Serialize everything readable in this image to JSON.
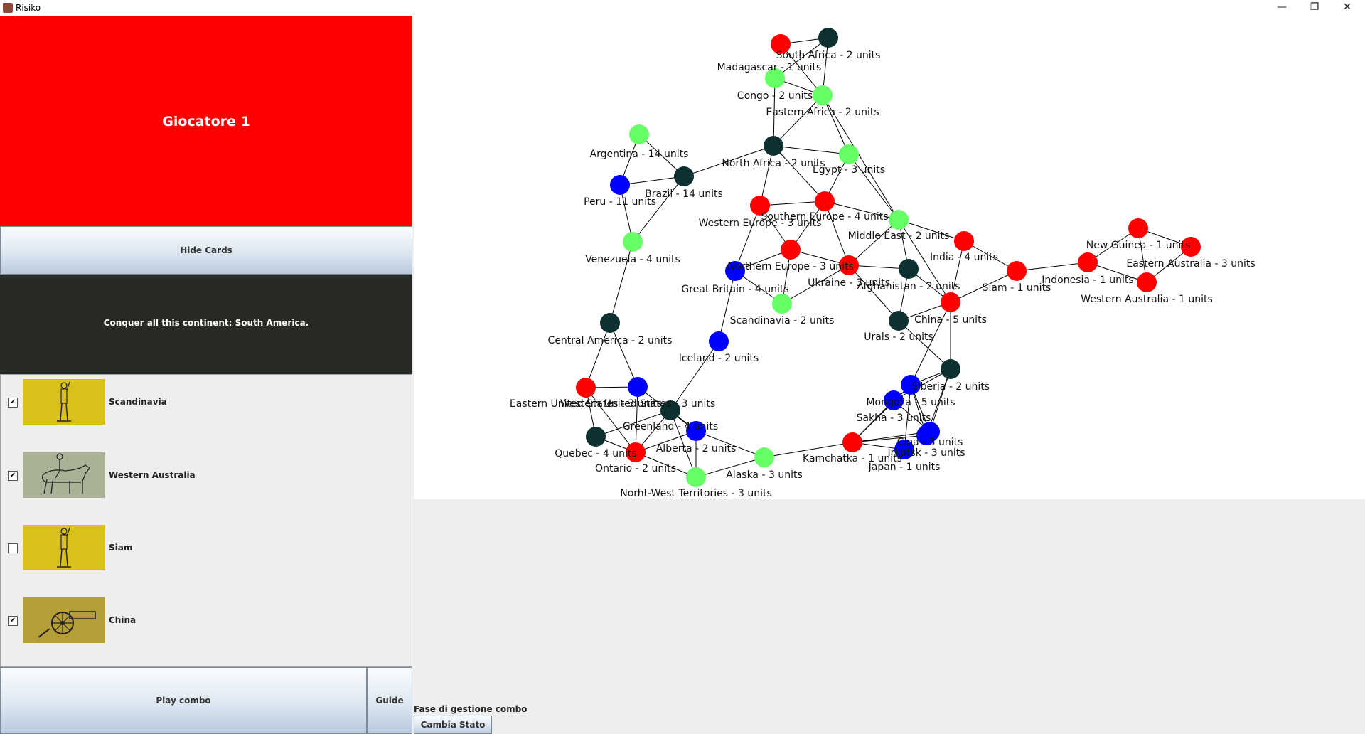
{
  "window": {
    "title": "Risiko",
    "minimize": "—",
    "maximize": "❐",
    "close": "✕"
  },
  "player": {
    "name": "Giocatore 1",
    "color": "#ff0000"
  },
  "buttons": {
    "hide_cards": "Hide Cards",
    "play_combo": "Play combo",
    "guide": "Guide",
    "cambia_stato": "Cambia Stato"
  },
  "objective": "Conquer all this continent: South America.",
  "cards": [
    {
      "territory": "Scandinavia",
      "type": "infantry-icon",
      "checked": true
    },
    {
      "territory": "Western Australia",
      "type": "cavalry-icon",
      "checked": true
    },
    {
      "territory": "Siam",
      "type": "infantry-icon",
      "checked": false
    },
    {
      "territory": "China",
      "type": "artillery-icon",
      "checked": true
    }
  ],
  "phase": "Fase di gestione combo",
  "colors": {
    "red": "#ff0000",
    "green": "#66ff66",
    "blue": "#0000ff",
    "dark": "#0d3030"
  },
  "territories": {
    "south_africa": {
      "label": "South Africa - 2 units",
      "owner": "dark"
    },
    "madagascar": {
      "label": "Madagascar - 1 units",
      "owner": "red"
    },
    "congo": {
      "label": "Congo - 2 units",
      "owner": "green"
    },
    "eastern_africa": {
      "label": "Eastern Africa - 2 units",
      "owner": "green"
    },
    "north_africa": {
      "label": "North Africa - 2 units",
      "owner": "dark"
    },
    "egypt": {
      "label": "Egypt - 3 units",
      "owner": "green"
    },
    "argentina": {
      "label": "Argentina - 14 units",
      "owner": "green"
    },
    "brazil": {
      "label": "Brazil - 14 units",
      "owner": "dark"
    },
    "peru": {
      "label": "Peru - 11 units",
      "owner": "blue"
    },
    "venezuela": {
      "label": "Venezuela - 4 units",
      "owner": "green"
    },
    "western_europe": {
      "label": "Western Europe - 3 units",
      "owner": "red"
    },
    "southern_europe": {
      "label": "Southern Europe - 4 units",
      "owner": "red"
    },
    "northern_europe": {
      "label": "Northern Europe - 3 units",
      "owner": "red"
    },
    "great_britain": {
      "label": "Great Britain - 4 units",
      "owner": "blue"
    },
    "scandinavia": {
      "label": "Scandinavia - 2 units",
      "owner": "green"
    },
    "iceland": {
      "label": "Iceland - 2 units",
      "owner": "blue"
    },
    "ukraine": {
      "label": "Ukraine - 3 units",
      "owner": "red"
    },
    "middle_east": {
      "label": "Middle East - 2 units",
      "owner": "green"
    },
    "afghanistan": {
      "label": "Afghanistan - 2 units",
      "owner": "dark"
    },
    "urals": {
      "label": "Urals - 2 units",
      "owner": "dark"
    },
    "india": {
      "label": "India - 4 units",
      "owner": "red"
    },
    "china": {
      "label": "China - 5 units",
      "owner": "red"
    },
    "siam": {
      "label": "Siam - 1 units",
      "owner": "red"
    },
    "indonesia": {
      "label": "Indonesia - 1 units",
      "owner": "red"
    },
    "new_guinea": {
      "label": "New Guinea - 1 units",
      "owner": "red"
    },
    "eastern_australia": {
      "label": "Eastern Australia - 3 units",
      "owner": "red"
    },
    "western_australia": {
      "label": "Western Australia - 1 units",
      "owner": "red"
    },
    "siberia": {
      "label": "Siberia - 2 units",
      "owner": "dark"
    },
    "irkutsk": {
      "label": "Irkutsk - 3 units",
      "owner": "blue"
    },
    "mongolia": {
      "label": "Mongolia - 5 units",
      "owner": "blue"
    },
    "sakha": {
      "label": "Sakha - 3 units",
      "owner": "blue"
    },
    "cina": {
      "label": "Cina - 3 units",
      "owner": "blue"
    },
    "japan": {
      "label": "Japan - 1 units",
      "owner": "blue"
    },
    "kamchatka": {
      "label": "Kamchatka - 1 units",
      "owner": "red"
    },
    "central_america": {
      "label": "Central America - 2 units",
      "owner": "dark"
    },
    "eastern_us": {
      "label": "Eastern United States - 3 units",
      "owner": "red"
    },
    "western_us": {
      "label": "Western United States - 3 units",
      "owner": "blue"
    },
    "greenland": {
      "label": "Greenland - 4 units",
      "owner": "dark"
    },
    "quebec": {
      "label": "Quebec - 4 units",
      "owner": "dark"
    },
    "ontario": {
      "label": "Ontario - 2 units",
      "owner": "red"
    },
    "alberta": {
      "label": "Alberta - 2 units",
      "owner": "blue"
    },
    "alaska": {
      "label": "Alaska - 3 units",
      "owner": "green"
    },
    "nwt": {
      "label": "Norht-West Territories - 3 units",
      "owner": "green"
    }
  },
  "links": [
    [
      "madagascar",
      "south_africa"
    ],
    [
      "madagascar",
      "eastern_africa"
    ],
    [
      "south_africa",
      "congo"
    ],
    [
      "south_africa",
      "eastern_africa"
    ],
    [
      "congo",
      "eastern_africa"
    ],
    [
      "congo",
      "north_africa"
    ],
    [
      "eastern_africa",
      "north_africa"
    ],
    [
      "eastern_africa",
      "egypt"
    ],
    [
      "eastern_africa",
      "middle_east"
    ],
    [
      "north_africa",
      "egypt"
    ],
    [
      "north_africa",
      "brazil"
    ],
    [
      "north_africa",
      "western_europe"
    ],
    [
      "north_africa",
      "southern_europe"
    ],
    [
      "egypt",
      "southern_europe"
    ],
    [
      "egypt",
      "middle_east"
    ],
    [
      "argentina",
      "brazil"
    ],
    [
      "argentina",
      "peru"
    ],
    [
      "brazil",
      "peru"
    ],
    [
      "brazil",
      "venezuela"
    ],
    [
      "peru",
      "venezuela"
    ],
    [
      "venezuela",
      "central_america"
    ],
    [
      "western_europe",
      "southern_europe"
    ],
    [
      "western_europe",
      "northern_europe"
    ],
    [
      "western_europe",
      "great_britain"
    ],
    [
      "southern_europe",
      "northern_europe"
    ],
    [
      "southern_europe",
      "ukraine"
    ],
    [
      "southern_europe",
      "middle_east"
    ],
    [
      "northern_europe",
      "great_britain"
    ],
    [
      "northern_europe",
      "scandinavia"
    ],
    [
      "northern_europe",
      "ukraine"
    ],
    [
      "great_britain",
      "scandinavia"
    ],
    [
      "great_britain",
      "iceland"
    ],
    [
      "scandinavia",
      "ukraine"
    ],
    [
      "iceland",
      "greenland"
    ],
    [
      "ukraine",
      "middle_east"
    ],
    [
      "ukraine",
      "afghanistan"
    ],
    [
      "ukraine",
      "urals"
    ],
    [
      "middle_east",
      "afghanistan"
    ],
    [
      "middle_east",
      "india"
    ],
    [
      "middle_east",
      "china"
    ],
    [
      "afghanistan",
      "urals"
    ],
    [
      "afghanistan",
      "china"
    ],
    [
      "urals",
      "china"
    ],
    [
      "urals",
      "siberia"
    ],
    [
      "india",
      "china"
    ],
    [
      "india",
      "siam"
    ],
    [
      "china",
      "siam"
    ],
    [
      "china",
      "siberia"
    ],
    [
      "china",
      "mongolia"
    ],
    [
      "siam",
      "indonesia"
    ],
    [
      "indonesia",
      "new_guinea"
    ],
    [
      "indonesia",
      "western_australia"
    ],
    [
      "new_guinea",
      "eastern_australia"
    ],
    [
      "new_guinea",
      "western_australia"
    ],
    [
      "eastern_australia",
      "western_australia"
    ],
    [
      "siberia",
      "irkutsk"
    ],
    [
      "siberia",
      "mongolia"
    ],
    [
      "siberia",
      "sakha"
    ],
    [
      "siberia",
      "cina"
    ],
    [
      "irkutsk",
      "mongolia"
    ],
    [
      "irkutsk",
      "kamchatka"
    ],
    [
      "mongolia",
      "kamchatka"
    ],
    [
      "mongolia",
      "japan"
    ],
    [
      "mongolia",
      "cina"
    ],
    [
      "sakha",
      "kamchatka"
    ],
    [
      "sakha",
      "cina"
    ],
    [
      "cina",
      "kamchatka"
    ],
    [
      "japan",
      "kamchatka"
    ],
    [
      "kamchatka",
      "alaska"
    ],
    [
      "central_america",
      "eastern_us"
    ],
    [
      "central_america",
      "western_us"
    ],
    [
      "eastern_us",
      "western_us"
    ],
    [
      "eastern_us",
      "quebec"
    ],
    [
      "eastern_us",
      "ontario"
    ],
    [
      "western_us",
      "ontario"
    ],
    [
      "western_us",
      "alberta"
    ],
    [
      "quebec",
      "ontario"
    ],
    [
      "quebec",
      "greenland"
    ],
    [
      "ontario",
      "greenland"
    ],
    [
      "ontario",
      "alberta"
    ],
    [
      "ontario",
      "nwt"
    ],
    [
      "greenland",
      "alberta"
    ],
    [
      "greenland",
      "nwt"
    ],
    [
      "alberta",
      "nwt"
    ],
    [
      "alberta",
      "alaska"
    ],
    [
      "nwt",
      "alaska"
    ]
  ]
}
